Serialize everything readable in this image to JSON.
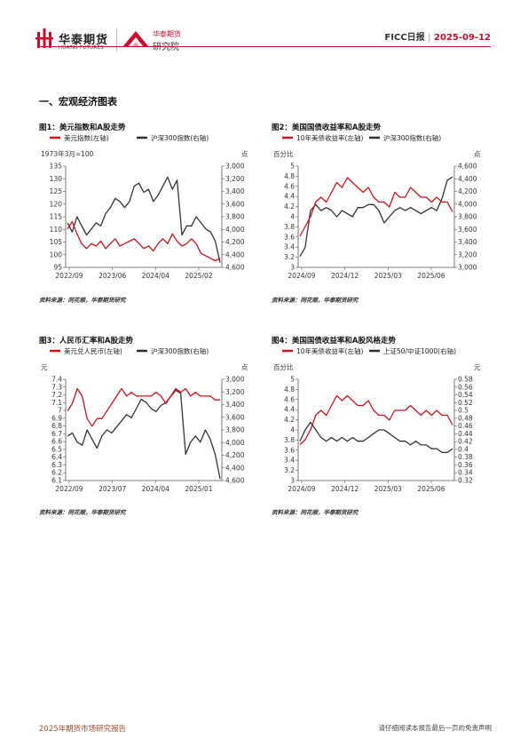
{
  "header": {
    "brand_cn": "华泰期货",
    "brand_en": "HUATAI FUTURES",
    "institute_line1": "华泰期货",
    "institute_line2": "研究院",
    "report_name": "FICC日报",
    "sep": "|",
    "date": "2025-09-12"
  },
  "section_title": "一、宏观经济图表",
  "footer": {
    "left": "2025年期货市场研究报告",
    "right": "请仔细阅读本报告最后一页的免责声明"
  },
  "colors": {
    "red": "#d0131a",
    "black": "#333333",
    "accent": "#c8102e"
  },
  "figures": [
    {
      "title": "图1：美元指数和A股走势",
      "legend": [
        "美元指数(左轴)",
        "沪深300指数(右轴)"
      ],
      "left_unit": "1973年3月=100",
      "right_unit": "点",
      "left_ticks": [
        "135",
        "130",
        "125",
        "120",
        "115",
        "110",
        "105",
        "100",
        "95"
      ],
      "right_ticks": [
        "3,000",
        "3,200",
        "3,400",
        "3,600",
        "3,800",
        "4,000",
        "4,200",
        "4,400",
        "4,600"
      ],
      "x_ticks": [
        "2022/09",
        "2023/06",
        "2024/04",
        "2025/02"
      ],
      "source": "资料来源：同花顺，华泰期货研究"
    },
    {
      "title": "图2：美国国债收益率和A股走势",
      "legend": [
        "10年美债收益率(左轴)",
        "沪深300指数(右轴)"
      ],
      "left_unit": "百分比",
      "right_unit": "点",
      "left_ticks": [
        "5",
        "4.8",
        "4.6",
        "4.4",
        "4.2",
        "4",
        "3.8",
        "3.6",
        "3.4",
        "3.2",
        "3"
      ],
      "right_ticks": [
        "4,600",
        "4,400",
        "4,200",
        "4,000",
        "3,800",
        "3,600",
        "3,400",
        "3,200",
        "3,000"
      ],
      "x_ticks": [
        "2024/09",
        "2024/12",
        "2025/03",
        "2025/06"
      ],
      "source": "资料来源：同花顺，华泰期货研究"
    },
    {
      "title": "图3：人民币汇率和A股走势",
      "legend": [
        "美元兑人民币(左轴)",
        "沪深300指数(右轴)"
      ],
      "left_unit": "元",
      "right_unit": "点",
      "left_ticks": [
        "7.4",
        "7.3",
        "7.2",
        "7.1",
        "7",
        "6.9",
        "6.8",
        "6.7",
        "6.6",
        "6.5",
        "6.4",
        "6.3",
        "6.2",
        "6.1"
      ],
      "right_ticks": [
        "3,000",
        "3,200",
        "3,400",
        "3,600",
        "3,800",
        "4,000",
        "4,200",
        "4,400",
        "4,600"
      ],
      "x_ticks": [
        "2022/09",
        "2023/07",
        "2024/04",
        "2025/01"
      ],
      "source": "资料来源：同花顺，华泰期货研究"
    },
    {
      "title": "图4：美国国债收益率和A股风格走势",
      "legend": [
        "10年美债收益率(左轴)",
        "上证50/中证1000(右轴)"
      ],
      "left_unit": "百分比",
      "right_unit": "元",
      "left_ticks": [
        "5",
        "4.8",
        "4.6",
        "4.4",
        "4.2",
        "4",
        "3.8",
        "3.6",
        "3.4",
        "3.2",
        "3"
      ],
      "right_ticks": [
        "0.58",
        "0.56",
        "0.54",
        "0.52",
        "0.5",
        "0.48",
        "0.46",
        "0.44",
        "0.42",
        "0.4",
        "0.38",
        "0.36",
        "0.34",
        "0.32"
      ],
      "x_ticks": [
        "2024/09",
        "2024/12",
        "2025/03",
        "2025/06"
      ],
      "source": "资料来源：同花顺，华泰期货研究"
    }
  ],
  "chart_data": [
    {
      "type": "line",
      "title": "图1：美元指数和A股走势",
      "y_left": {
        "unit": "1973年3月=100",
        "range": [
          95,
          135
        ]
      },
      "y_right": {
        "unit": "点",
        "range": [
          3000,
          4600
        ],
        "inverted": true
      },
      "x_ticks": [
        "2022/09",
        "2023/06",
        "2024/04",
        "2025/02"
      ],
      "series": [
        {
          "name": "美元指数(左轴)",
          "axis": "left",
          "values": [
            110,
            113,
            108,
            104,
            102,
            104,
            103,
            105,
            102,
            104,
            106,
            103,
            104,
            105,
            106,
            104,
            102,
            103,
            101,
            104,
            106,
            104,
            108,
            105,
            103,
            104,
            106,
            104,
            100,
            99,
            98,
            97,
            98
          ]
        },
        {
          "name": "沪深300指数(右轴)",
          "axis": "right",
          "values": [
            3900,
            4050,
            3800,
            3950,
            4100,
            4000,
            3900,
            3950,
            3750,
            3650,
            3500,
            3550,
            3650,
            3550,
            3300,
            3250,
            3400,
            3350,
            3550,
            3450,
            3300,
            3150,
            3350,
            3200,
            4100,
            3950,
            3950,
            3800,
            3900,
            4000,
            4050,
            4200,
            4550
          ]
        }
      ]
    },
    {
      "type": "line",
      "title": "图2：美国国债收益率和A股走势",
      "y_left": {
        "unit": "百分比",
        "range": [
          3,
          5
        ]
      },
      "y_right": {
        "unit": "点",
        "range": [
          3000,
          4600
        ]
      },
      "x_ticks": [
        "2024/09",
        "2024/12",
        "2025/03",
        "2025/06"
      ],
      "series": [
        {
          "name": "10年美债收益率(左轴)",
          "axis": "left",
          "values": [
            3.6,
            3.8,
            4.0,
            4.3,
            4.4,
            4.3,
            4.5,
            4.7,
            4.6,
            4.8,
            4.7,
            4.6,
            4.5,
            4.6,
            4.4,
            4.3,
            4.3,
            4.2,
            4.5,
            4.4,
            4.4,
            4.6,
            4.5,
            4.4,
            4.4,
            4.3,
            4.4,
            4.3,
            4.3,
            4.1
          ]
        },
        {
          "name": "沪深300指数(右轴)",
          "axis": "right",
          "values": [
            3150,
            3300,
            3900,
            4000,
            3900,
            3950,
            3900,
            3800,
            3900,
            3850,
            3800,
            3950,
            3950,
            4000,
            4000,
            3900,
            3700,
            3800,
            3900,
            3950,
            3900,
            3950,
            3900,
            3850,
            3900,
            3950,
            3900,
            4100,
            4400,
            4450
          ]
        }
      ]
    },
    {
      "type": "line",
      "title": "图3：人民币汇率和A股走势",
      "y_left": {
        "unit": "元",
        "range": [
          6.1,
          7.4
        ]
      },
      "y_right": {
        "unit": "点",
        "range": [
          3000,
          4600
        ],
        "inverted": true
      },
      "x_ticks": [
        "2022/09",
        "2023/07",
        "2024/04",
        "2025/01"
      ],
      "series": [
        {
          "name": "美元兑人民币(左轴)",
          "axis": "left",
          "values": [
            7.0,
            7.1,
            7.3,
            7.2,
            6.9,
            6.8,
            6.9,
            6.9,
            7.0,
            7.1,
            7.2,
            7.3,
            7.2,
            7.25,
            7.2,
            7.2,
            7.2,
            7.2,
            7.25,
            7.2,
            7.1,
            7.2,
            7.3,
            7.25,
            7.3,
            7.2,
            7.25,
            7.2,
            7.2,
            7.2,
            7.15,
            7.15
          ]
        },
        {
          "name": "沪深300指数(右轴)",
          "axis": "right",
          "values": [
            3900,
            3850,
            4000,
            4050,
            3800,
            3950,
            4100,
            3900,
            3800,
            3850,
            3750,
            3650,
            3550,
            3600,
            3450,
            3300,
            3350,
            3450,
            3500,
            3400,
            3350,
            3250,
            3150,
            3200,
            4200,
            4000,
            3900,
            4000,
            3800,
            3950,
            4200,
            4600
          ]
        }
      ]
    },
    {
      "type": "line",
      "title": "图4：美国国债收益率和A股风格走势",
      "y_left": {
        "unit": "百分比",
        "range": [
          3,
          5
        ]
      },
      "y_right": {
        "unit": "元",
        "range": [
          0.32,
          0.58
        ]
      },
      "x_ticks": [
        "2024/09",
        "2024/12",
        "2025/03",
        "2025/06"
      ],
      "series": [
        {
          "name": "10年美债收益率(左轴)",
          "axis": "left",
          "values": [
            3.7,
            3.8,
            4.0,
            4.3,
            4.4,
            4.3,
            4.5,
            4.7,
            4.6,
            4.7,
            4.6,
            4.5,
            4.5,
            4.6,
            4.4,
            4.3,
            4.3,
            4.2,
            4.4,
            4.4,
            4.4,
            4.5,
            4.4,
            4.3,
            4.4,
            4.3,
            4.4,
            4.3,
            4.3,
            4.1
          ]
        },
        {
          "name": "上证50/中证1000(右轴)",
          "axis": "right",
          "values": [
            0.42,
            0.45,
            0.47,
            0.45,
            0.43,
            0.42,
            0.43,
            0.42,
            0.43,
            0.42,
            0.43,
            0.42,
            0.42,
            0.43,
            0.44,
            0.45,
            0.45,
            0.44,
            0.43,
            0.42,
            0.42,
            0.41,
            0.42,
            0.41,
            0.41,
            0.4,
            0.4,
            0.39,
            0.39,
            0.4
          ]
        }
      ]
    }
  ]
}
